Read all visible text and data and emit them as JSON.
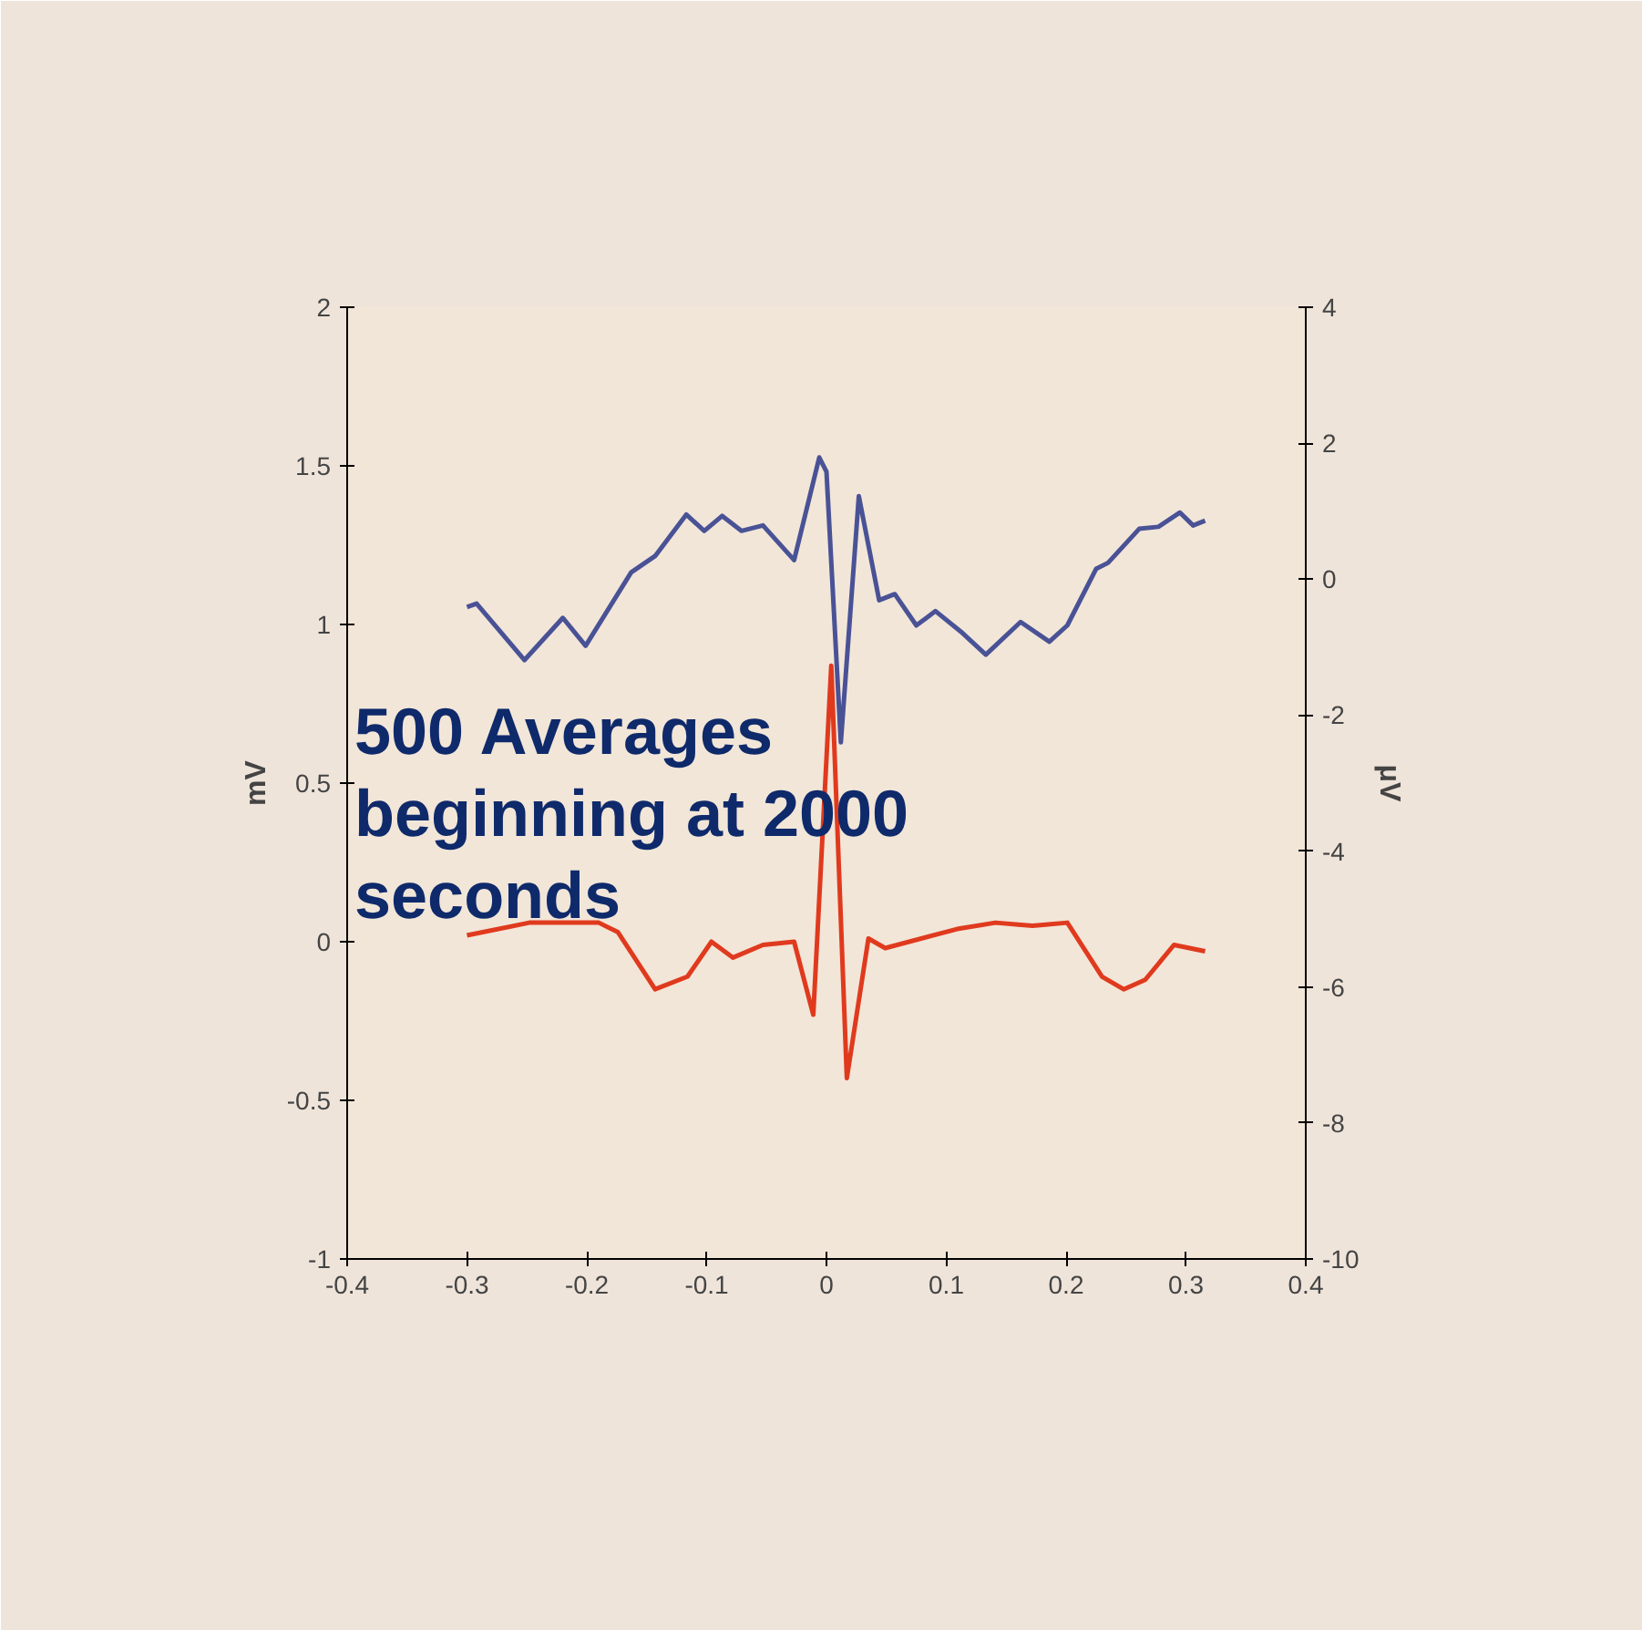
{
  "chart_data": {
    "type": "line",
    "ylabel": "mV",
    "y2label": "μV",
    "annotations": [
      "500 Averages beginning at 2000 seconds"
    ],
    "xlim": [
      -0.4,
      0.4
    ],
    "xticks": [
      -0.4,
      -0.3,
      -0.2,
      -0.1,
      0,
      0.1,
      0.2,
      0.3,
      0.4
    ],
    "ylim": [
      -1,
      2
    ],
    "yticks": [
      -1,
      -0.5,
      0,
      0.5,
      1,
      1.5,
      2
    ],
    "y2lim": [
      -10,
      4
    ],
    "y2ticks": [
      -10,
      -8,
      -6,
      -4,
      -2,
      0,
      2,
      4
    ],
    "grid": false,
    "marker": "none",
    "line_style": "solid",
    "series": [
      {
        "color": "#e03a1e",
        "x": [
          -0.3,
          -0.248,
          -0.19,
          -0.174,
          -0.143,
          -0.116,
          -0.096,
          -0.078,
          -0.053,
          -0.027,
          -0.011,
          0.004,
          0.017,
          0.035,
          0.049,
          0.109,
          0.141,
          0.172,
          0.201,
          0.23,
          0.248,
          0.266,
          0.29,
          0.316
        ],
        "values": [
          0.02,
          0.06,
          0.06,
          0.03,
          -0.15,
          -0.11,
          0.0,
          -0.05,
          -0.01,
          0.0,
          -0.23,
          0.87,
          -0.43,
          0.01,
          -0.02,
          0.04,
          0.06,
          0.05,
          0.06,
          -0.11,
          -0.15,
          -0.12,
          -0.01,
          -0.03
        ]
      },
      {
        "color": "#4a5296",
        "axis": "y2",
        "x": [
          -0.3,
          -0.292,
          -0.252,
          -0.22,
          -0.201,
          -0.163,
          -0.143,
          -0.117,
          -0.102,
          -0.087,
          -0.071,
          -0.053,
          -0.027,
          -0.006,
          0.0,
          0.012,
          0.027,
          0.044,
          0.057,
          0.075,
          0.091,
          0.112,
          0.133,
          0.162,
          0.186,
          0.201,
          0.225,
          0.235,
          0.261,
          0.277,
          0.295,
          0.306,
          0.316
        ],
        "values": [
          -0.41,
          -0.36,
          -1.19,
          -0.57,
          -0.98,
          0.1,
          0.34,
          0.95,
          0.71,
          0.93,
          0.71,
          0.79,
          0.28,
          1.79,
          1.58,
          -2.4,
          1.22,
          -0.31,
          -0.22,
          -0.68,
          -0.47,
          -0.77,
          -1.11,
          -0.63,
          -0.92,
          -0.68,
          0.15,
          0.24,
          0.74,
          0.77,
          0.98,
          0.79,
          0.86
        ]
      }
    ]
  }
}
